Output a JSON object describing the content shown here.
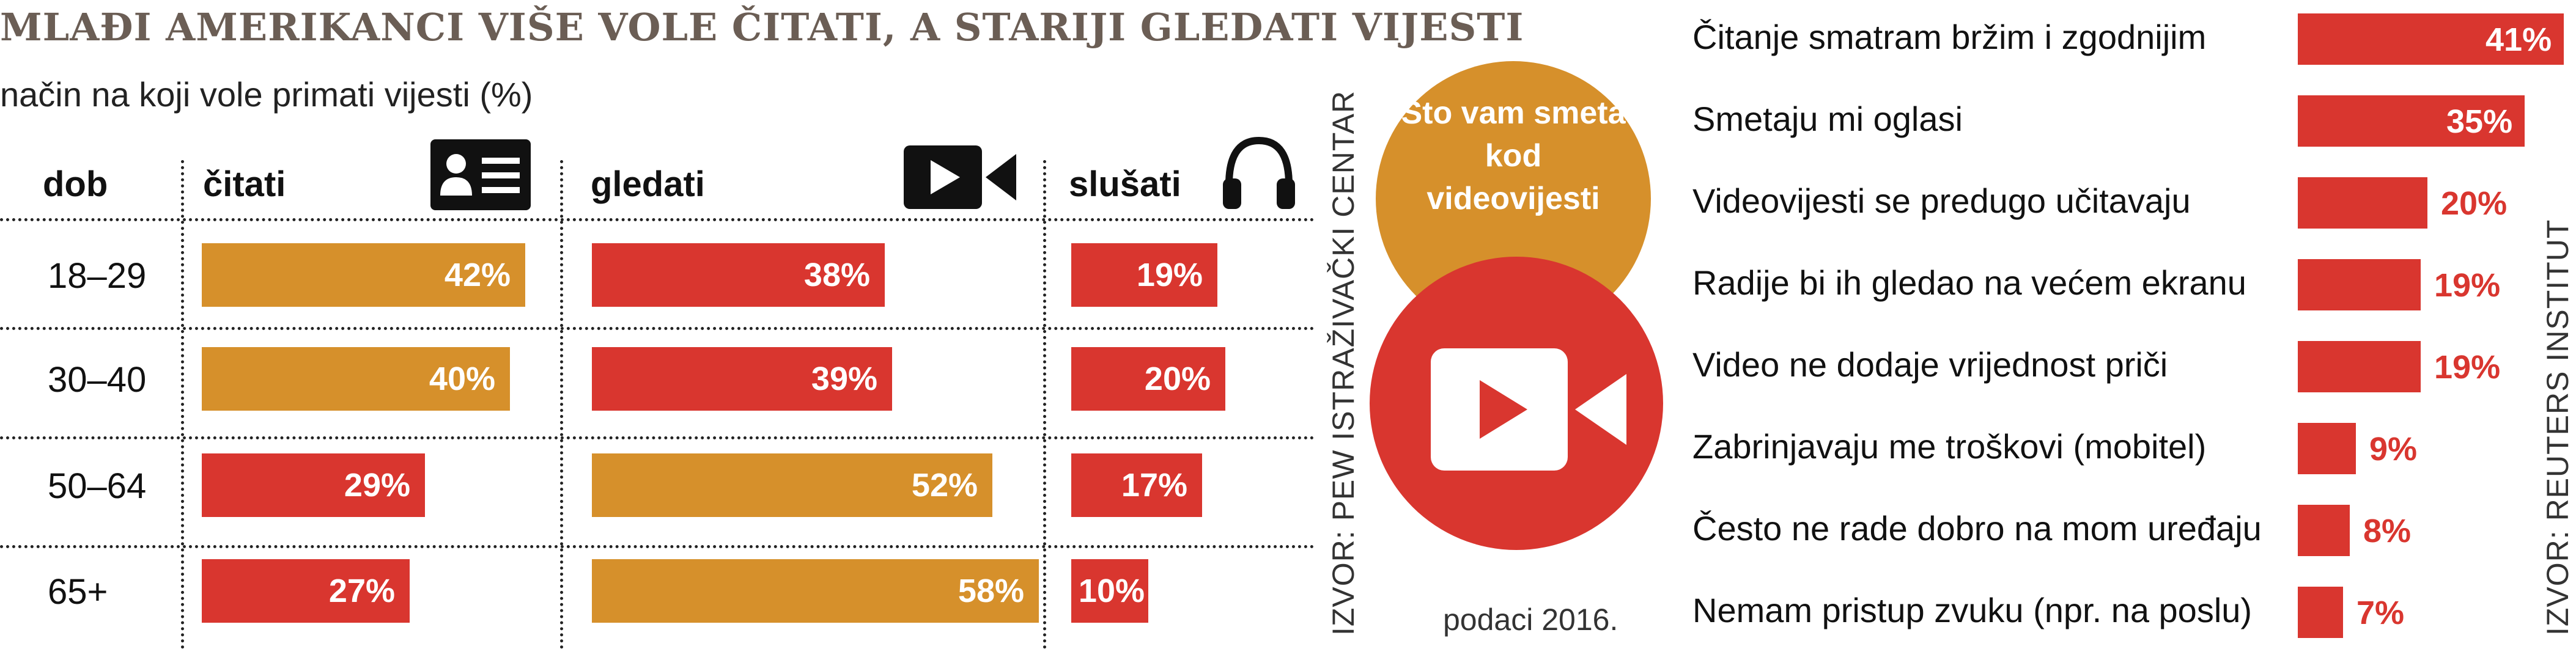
{
  "title": "MLAĐI AMERIKANCI  VIŠE VOLE ČITATI, A STARIJI GLEDATI VIJESTI",
  "subtitle": "način na koji vole primati vijesti (%)",
  "headers": {
    "age": "dob",
    "read": "čitati",
    "watch": "gledati",
    "listen": "slušati"
  },
  "icons": {
    "read": "id-card-icon",
    "watch": "video-camera-icon",
    "listen": "headphones-icon",
    "circle": "video-camera-icon"
  },
  "colors": {
    "orange": "#d6902b",
    "red": "#d9362f",
    "title": "#6b5e55"
  },
  "source_left": "IZVOR: PEW ISTRAŽIVAČKI CENTAR",
  "source_right": "IZVOR: REUTERS INSTITUT",
  "circle_title": "Što vam smeta kod videovijesti",
  "note": "podaci 2016.",
  "chart_data": [
    {
      "type": "bar",
      "title": "MLAĐI AMERIKANCI  VIŠE VOLE ČITATI, A STARIJI GLEDATI VIJESTI",
      "subtitle": "način na koji vole primati vijesti (%)",
      "categories": [
        "18–29",
        "30–40",
        "50–64",
        "65+"
      ],
      "series": [
        {
          "name": "čitati",
          "values": [
            42,
            40,
            29,
            27
          ],
          "labels": [
            "42%",
            "40%",
            "29%",
            "27%"
          ],
          "colors": [
            "#d6902b",
            "#d6902b",
            "#d9362f",
            "#d9362f"
          ]
        },
        {
          "name": "gledati",
          "values": [
            38,
            39,
            52,
            58
          ],
          "labels": [
            "38%",
            "39%",
            "52%",
            "58%"
          ],
          "colors": [
            "#d9362f",
            "#d9362f",
            "#d6902b",
            "#d6902b"
          ]
        },
        {
          "name": "slušati",
          "values": [
            19,
            20,
            17,
            10
          ],
          "labels": [
            "19%",
            "20%",
            "17%",
            "10%"
          ],
          "colors": [
            "#d9362f",
            "#d9362f",
            "#d9362f",
            "#d9362f"
          ]
        }
      ],
      "source": "IZVOR: PEW ISTRAŽIVAČKI CENTAR"
    },
    {
      "type": "bar",
      "title": "Što vam smeta kod videovijesti",
      "categories": [
        "Čitanje smatram bržim i zgodnijim",
        "Smetaju mi oglasi",
        "Videovijesti se predugo učitavaju",
        "Radije bi ih gledao na većem ekranu",
        "Video ne dodaje vrijednost priči",
        "Zabrinjavaju me troškovi (mobitel)",
        "Često ne rade dobro na mom uređaju",
        "Nemam pristup zvuku (npr. na poslu)"
      ],
      "values": [
        41,
        35,
        20,
        19,
        19,
        9,
        8,
        7
      ],
      "labels": [
        "41%",
        "35%",
        "20%",
        "19%",
        "19%",
        "9%",
        "8%",
        "7%"
      ],
      "note": "podaci 2016.",
      "source": "IZVOR: REUTERS INSTITUT"
    }
  ]
}
